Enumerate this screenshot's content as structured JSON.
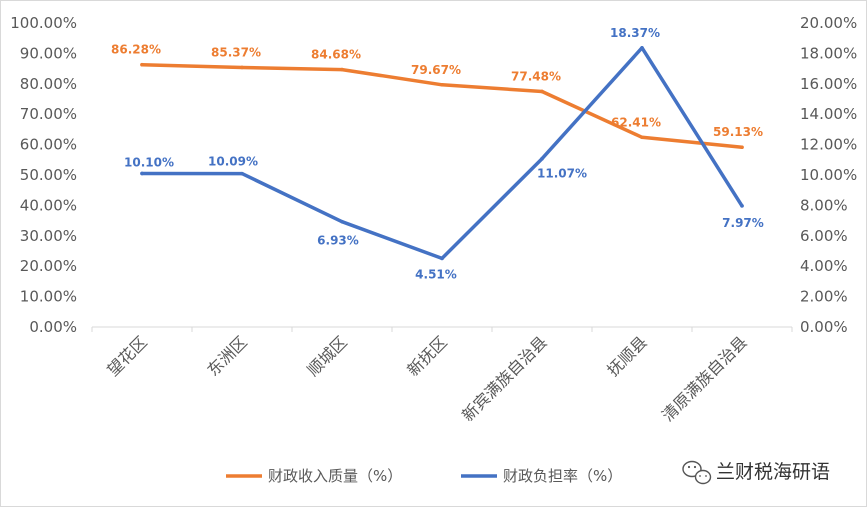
{
  "chart_data": {
    "type": "line",
    "categories": [
      "望花区",
      "东洲区",
      "顺城区",
      "新抚区",
      "新宾满族自治县",
      "抚顺县",
      "清原满族自治县"
    ],
    "series": [
      {
        "name": "财政收入质量（%）",
        "axis": "left",
        "color": "#ED7D31",
        "values": [
          86.28,
          85.37,
          84.68,
          79.67,
          77.48,
          62.41,
          59.13
        ],
        "labels": [
          "86.28%",
          "85.37%",
          "84.68%",
          "79.67%",
          "77.48%",
          "62.41%",
          "59.13%"
        ]
      },
      {
        "name": "财政负担率（%）",
        "axis": "right",
        "color": "#4472C4",
        "values": [
          10.1,
          10.09,
          6.93,
          4.51,
          11.07,
          18.37,
          7.97
        ],
        "labels": [
          "10.10%",
          "10.09%",
          "6.93%",
          "4.51%",
          "11.07%",
          "18.37%",
          "7.97%"
        ]
      }
    ],
    "y_left": {
      "range": [
        0,
        100
      ],
      "ticks": [
        "0.00%",
        "10.00%",
        "20.00%",
        "30.00%",
        "40.00%",
        "50.00%",
        "60.00%",
        "70.00%",
        "80.00%",
        "90.00%",
        "100.00%"
      ]
    },
    "y_right": {
      "range": [
        0,
        20
      ],
      "ticks": [
        "0.00%",
        "2.00%",
        "4.00%",
        "6.00%",
        "8.00%",
        "10.00%",
        "12.00%",
        "14.00%",
        "16.00%",
        "18.00%",
        "20.00%"
      ]
    },
    "grid": false,
    "legend_position": "bottom"
  },
  "watermark": {
    "icon": "wechat-icon",
    "text": "兰财税海研语"
  }
}
